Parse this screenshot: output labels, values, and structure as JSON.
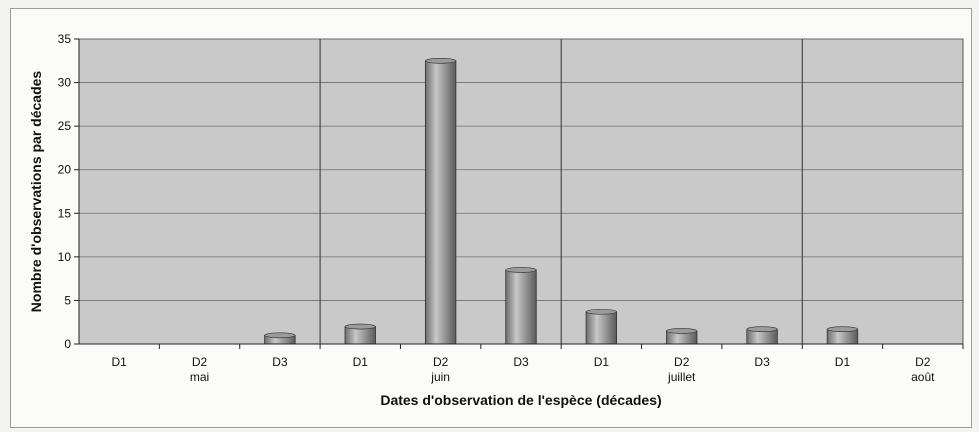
{
  "chart_data": {
    "type": "bar",
    "title": "",
    "xlabel": "Dates d'observation de l'espèce (décades)",
    "ylabel": "Nombre d'observations par décades",
    "ylim": [
      0,
      35
    ],
    "yticks": [
      0,
      5,
      10,
      15,
      20,
      25,
      30,
      35
    ],
    "grid": true,
    "legend": "none",
    "categories": [
      "D1",
      "D2",
      "D3",
      "D1",
      "D2",
      "D3",
      "D1",
      "D2",
      "D3",
      "D1",
      "D2"
    ],
    "months": [
      {
        "label": "mai",
        "start": 0,
        "end": 2
      },
      {
        "label": "juin",
        "start": 3,
        "end": 5
      },
      {
        "label": "juillet",
        "start": 6,
        "end": 8
      },
      {
        "label": "août",
        "start": 9,
        "end": 10
      }
    ],
    "values": [
      0,
      0,
      1,
      2,
      32.5,
      8.5,
      3.7,
      1.5,
      1.7,
      1.7,
      0
    ],
    "colors": {
      "plot_background": "#c9c9c9",
      "bar": "#8a8a8a",
      "grid": "#6f6f6f"
    }
  }
}
